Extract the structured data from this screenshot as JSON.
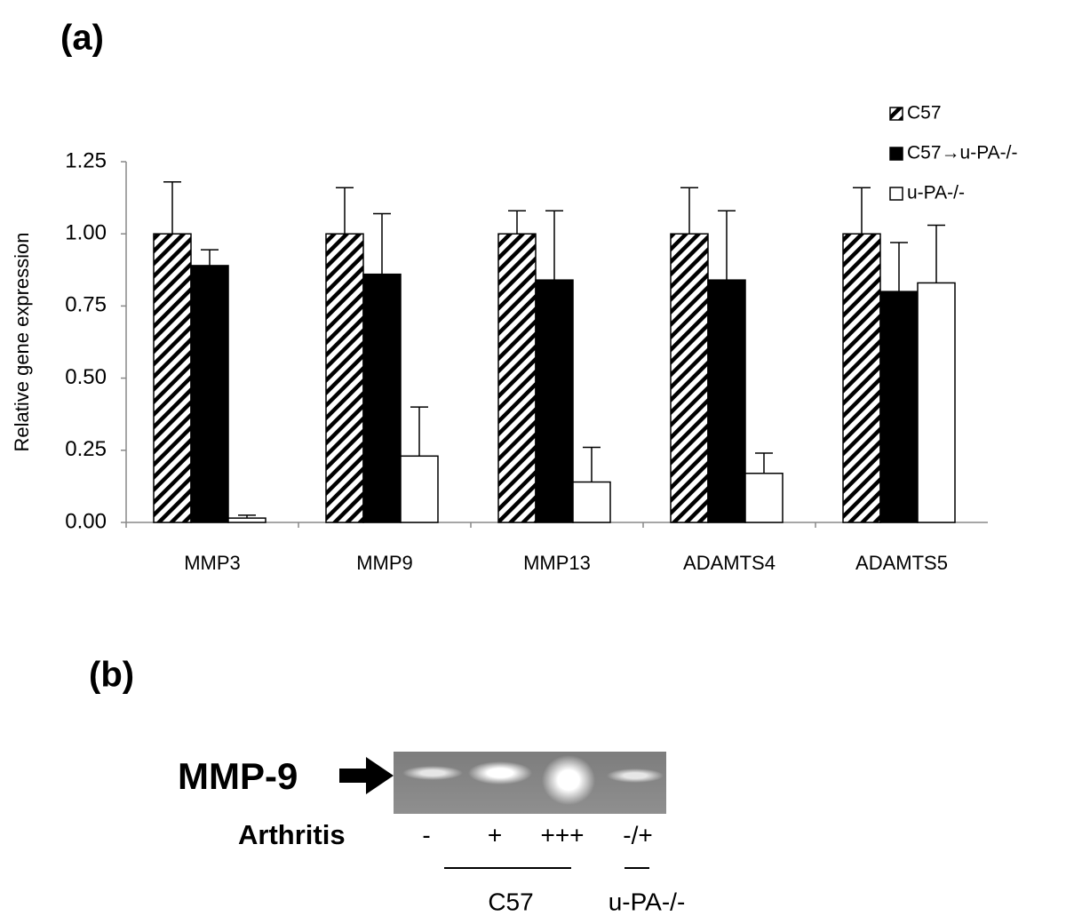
{
  "panel_a_label": "(a)",
  "chart_data": {
    "type": "bar",
    "y_label": "Relative gene expression",
    "categories": [
      "MMP3",
      "MMP9",
      "MMP13",
      "ADAMTS4",
      "ADAMTS5"
    ],
    "series": [
      {
        "name": "C57",
        "color": "#000000",
        "hatch": true,
        "values": [
          1.0,
          1.0,
          1.0,
          1.0,
          1.0
        ],
        "errors": [
          0.18,
          0.16,
          0.08,
          0.16,
          0.16
        ]
      },
      {
        "name": "C57→u-PA-/-",
        "color": "#000000",
        "hatch": false,
        "values": [
          0.89,
          0.86,
          0.84,
          0.84,
          0.8
        ],
        "errors": [
          0.055,
          0.21,
          0.24,
          0.24,
          0.17
        ]
      },
      {
        "name": "u-PA-/-",
        "color": "#ffffff",
        "hatch": false,
        "values": [
          0.015,
          0.23,
          0.14,
          0.17,
          0.83
        ],
        "errors": [
          0.01,
          0.17,
          0.12,
          0.07,
          0.2
        ]
      }
    ],
    "ylim": [
      0,
      1.25
    ],
    "yticks": [
      {
        "value": 0,
        "label": "0.00"
      },
      {
        "value": 0.25,
        "label": "0.25"
      },
      {
        "value": 0.5,
        "label": "0.50"
      },
      {
        "value": 0.75,
        "label": "0.75"
      },
      {
        "value": 1.0,
        "label": "1.00"
      },
      {
        "value": 1.25,
        "label": "1.25"
      }
    ],
    "grid": false,
    "legend": "top-right"
  },
  "panel_b": {
    "label": "(b)",
    "band_label": "MMP-9",
    "row_label": "Arthritis",
    "lanes": [
      "-",
      "+",
      "+++",
      "-/+"
    ],
    "groups": [
      "C57",
      "u-PA-/-"
    ]
  }
}
